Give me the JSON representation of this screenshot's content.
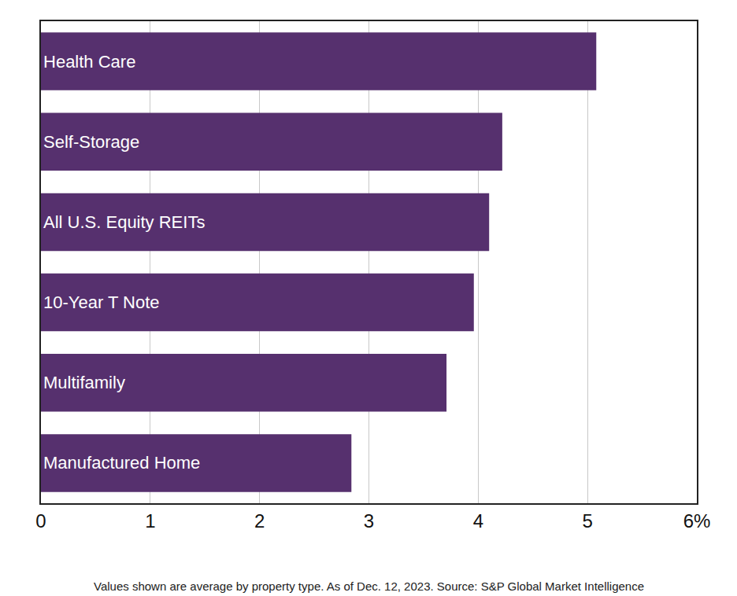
{
  "chart_data": {
    "type": "bar",
    "orientation": "horizontal",
    "categories": [
      "Health Care",
      "Self-Storage",
      "All U.S. Equity REITs",
      "10-Year T Note",
      "Multifamily",
      "Manufactured Home"
    ],
    "values": [
      5.08,
      4.22,
      4.1,
      3.96,
      3.71,
      2.84
    ],
    "color": "#56306e",
    "xlim": [
      0,
      6
    ],
    "xticks": [
      0,
      1,
      2,
      3,
      4,
      5,
      {
        "value": 6,
        "label": "6%"
      }
    ],
    "grid": true,
    "tick_labels": "x",
    "annotations": [
      "Values shown are average by property type. As of Dec. 12, 2023. Source: S&P Global Market Intelligence"
    ]
  }
}
